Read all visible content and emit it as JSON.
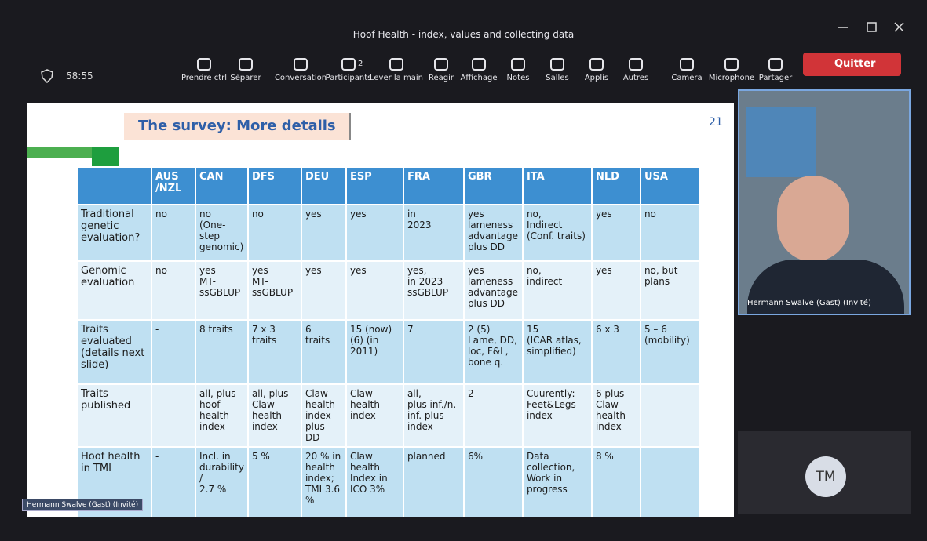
{
  "window": {
    "title": "Hoof Health - index, values and collecting data"
  },
  "toolbar": {
    "timer": "58:55",
    "buttons": [
      "Prendre ctrl",
      "Séparer",
      "Conversation",
      "Participants",
      "Lever la main",
      "Réagir",
      "Affichage",
      "Notes",
      "Salles",
      "Applis",
      "Autres",
      "Caméra",
      "Microphone",
      "Partager"
    ],
    "participant_count": "2",
    "leave": "Quitter"
  },
  "slide": {
    "title": "The survey: More details",
    "page_number": "21",
    "table": {
      "columns": [
        "AUS\n/NZL",
        "CAN",
        "DFS",
        "DEU",
        "ESP",
        "FRA",
        "GBR",
        "ITA",
        "NLD",
        "USA"
      ],
      "rows": [
        {
          "label": "Traditional genetic evaluation?",
          "cells": [
            "no",
            "no\n(One-step genomic)",
            "no",
            "yes",
            "yes",
            "in\n2023",
            "yes\nlameness advantage plus DD",
            "no,\nIndirect\n(Conf. traits)",
            "yes",
            "no"
          ]
        },
        {
          "label": "Genomic evaluation",
          "cells": [
            "no",
            "yes\nMT-ssGBLUP",
            "yes\nMT-ssGBLUP",
            "yes",
            "yes",
            "yes,\nin 2023 ssGBLUP",
            "yes\nlameness advantage plus DD",
            "no,\nindirect",
            "yes",
            "no, but plans"
          ]
        },
        {
          "label": "Traits evaluated\n(details next slide)",
          "cells": [
            "-",
            "8 traits",
            "7 x 3 traits",
            "6\ntraits",
            "15 (now)\n(6) (in 2011)",
            "7",
            "2 (5)\nLame, DD, loc, F&L, bone q.",
            "15\n(ICAR atlas, simplified)",
            "6 x 3",
            "5 – 6\n(mobility)"
          ]
        },
        {
          "label": "Traits published",
          "cells": [
            "-",
            "all, plus hoof health index",
            "all, plus Claw health index",
            "Claw health index plus DD",
            "Claw health index",
            "all,\nplus inf./n. inf. plus index",
            "2",
            "Cuurently: Feet&Legs index",
            "6 plus Claw health index",
            null
          ]
        },
        {
          "label": "Hoof health in TMI",
          "cells": [
            "-",
            "Incl. in durability\n/\n2.7 %",
            "5 %",
            "20 % in health index; TMI 3.6 %",
            "Claw health Index in ICO 3%",
            "planned",
            "6%",
            "Data collection, Work in progress",
            "8 %",
            null
          ]
        }
      ]
    },
    "presenter_label": "Hermann Swalve (Gast) (Invité)"
  },
  "participants": [
    {
      "name": "Hermann Swalve (Gast) (Invité)"
    },
    {
      "initials": "TM"
    }
  ]
}
